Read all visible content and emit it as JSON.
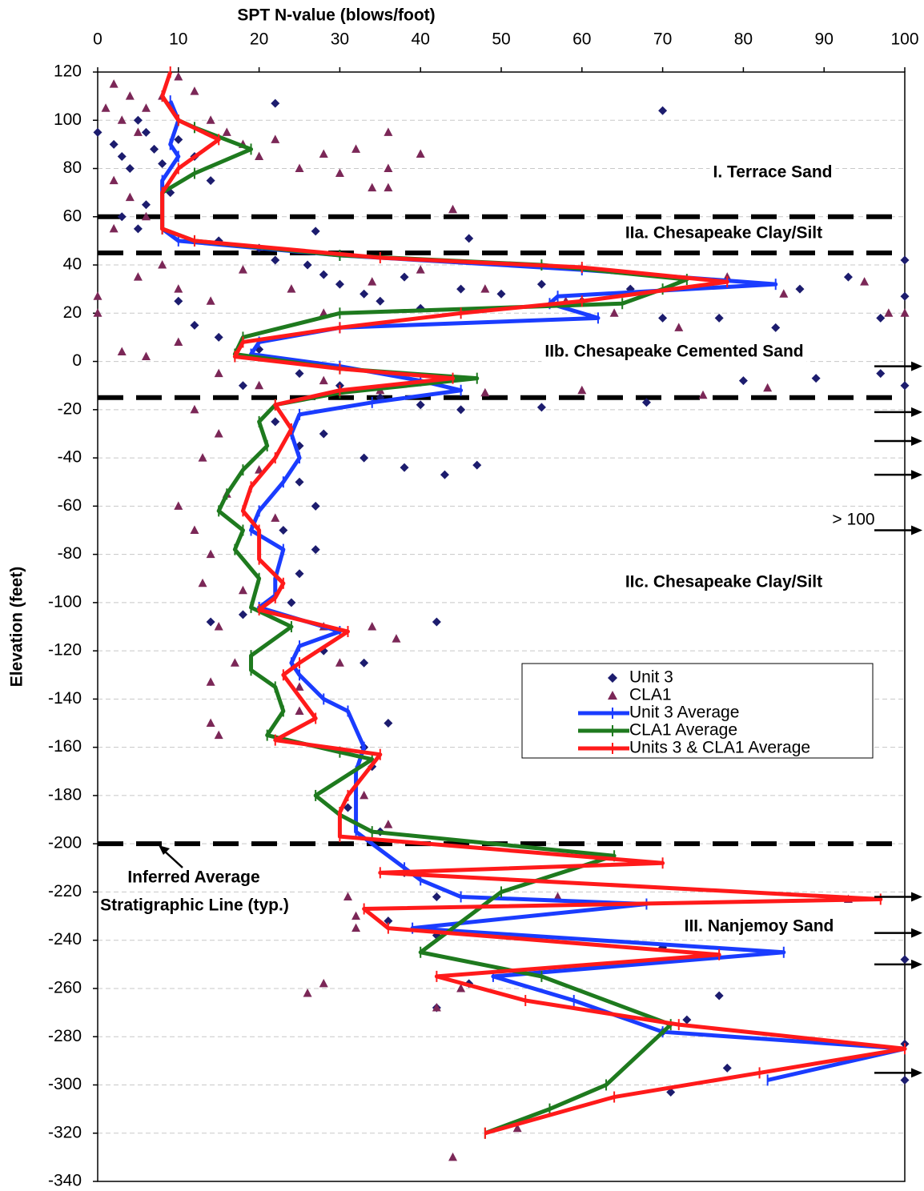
{
  "chart_data": {
    "type": "scatter",
    "x_label": "SPT N-value (blows/foot)",
    "y_label": "Elevation (feet)",
    "xlim": [
      0,
      100
    ],
    "xticks": [
      0,
      10,
      20,
      30,
      40,
      50,
      60,
      70,
      80,
      90,
      100
    ],
    "ylim": [
      -340,
      120
    ],
    "yticks": [
      120,
      100,
      80,
      60,
      40,
      20,
      0,
      -20,
      -40,
      -60,
      -80,
      -100,
      -120,
      -140,
      -160,
      -180,
      -200,
      -220,
      -240,
      -260,
      -280,
      -300,
      -320,
      -340
    ],
    "grid": true,
    "legend": "right",
    "boundaries": [
      60,
      45,
      -15,
      -200
    ],
    "offscale": {
      "label": "> 100",
      "elevations": [
        -2,
        -21,
        -33,
        -47,
        -70,
        -222,
        -237,
        -250,
        -295
      ]
    },
    "annotations": [
      "I. Terrace Sand",
      "IIa. Chesapeake Clay/Silt",
      "IIb. Chesapeake Cemented Sand",
      "IIc. Chesapeake Clay/Silt",
      "III. Nanjemoy Sand",
      "Inferred Average",
      "Stratigraphic Line (typ.)"
    ],
    "series": [
      {
        "name": "Unit 3",
        "kind": "scatter",
        "marker": "diamond",
        "color": "#1c1c6e",
        "x": [
          0,
          2,
          3,
          5,
          6,
          7,
          4,
          8,
          10,
          12,
          14,
          9,
          6,
          3,
          5,
          15,
          20,
          22,
          26,
          28,
          30,
          33,
          35,
          38,
          40,
          45,
          50,
          55,
          60,
          66,
          70,
          77,
          70,
          22,
          27,
          46,
          84,
          87,
          93,
          97,
          100,
          100,
          100,
          100,
          100,
          100,
          10,
          12,
          15,
          20,
          25,
          30,
          35,
          40,
          45,
          55,
          68,
          80,
          89,
          97,
          18,
          22,
          25,
          28,
          33,
          38,
          43,
          47,
          25,
          27,
          23,
          27,
          25,
          24,
          14,
          18,
          42,
          28,
          33,
          36,
          33,
          34,
          31,
          35,
          38,
          42,
          36,
          42,
          70,
          46,
          42,
          77,
          73,
          70,
          78,
          71
        ],
        "values": [
          95,
          90,
          85,
          100,
          95,
          88,
          80,
          82,
          92,
          85,
          75,
          70,
          65,
          60,
          55,
          50,
          47,
          42,
          40,
          36,
          32,
          28,
          25,
          35,
          22,
          30,
          28,
          32,
          25,
          30,
          18,
          18,
          104,
          107,
          54,
          51,
          14,
          30,
          35,
          18,
          42,
          27,
          -10,
          -248,
          -283,
          -298,
          25,
          15,
          10,
          5,
          -5,
          -10,
          -15,
          -18,
          -20,
          -19,
          -17,
          -8,
          -7,
          -5,
          -10,
          -25,
          -35,
          -30,
          -40,
          -44,
          -47,
          -43,
          -50,
          -60,
          -70,
          -78,
          -88,
          -100,
          -108,
          -105,
          -108,
          -120,
          -125,
          -150,
          -160,
          -168,
          -185,
          -195,
          -212,
          -222,
          -232,
          -238,
          -243,
          -258,
          -268,
          -263,
          -273,
          -278,
          -293,
          -303
        ]
      },
      {
        "name": "CLA1",
        "kind": "scatter",
        "marker": "triangle",
        "color": "#7b2757",
        "x": [
          2,
          4,
          6,
          3,
          5,
          8,
          10,
          12,
          1,
          14,
          16,
          18,
          20,
          22,
          25,
          28,
          30,
          32,
          34,
          36,
          40,
          36,
          36,
          2,
          4,
          6,
          2,
          0,
          0,
          5,
          8,
          10,
          14,
          18,
          24,
          28,
          34,
          40,
          48,
          58,
          64,
          72,
          78,
          85,
          95,
          98,
          100,
          44,
          3,
          6,
          10,
          15,
          20,
          28,
          35,
          48,
          60,
          75,
          83,
          12,
          15,
          13,
          10,
          12,
          14,
          13,
          16,
          20,
          22,
          18,
          15,
          17,
          14,
          14,
          15,
          28,
          34,
          37,
          30,
          25,
          25,
          33,
          36,
          31,
          32,
          28,
          42,
          45,
          52,
          44,
          57,
          93,
          26,
          32
        ],
        "values": [
          115,
          110,
          105,
          100,
          95,
          110,
          118,
          112,
          105,
          100,
          95,
          90,
          85,
          92,
          80,
          86,
          78,
          88,
          72,
          95,
          86,
          80,
          72,
          75,
          68,
          60,
          55,
          27,
          20,
          35,
          40,
          30,
          25,
          38,
          30,
          20,
          33,
          38,
          30,
          25,
          20,
          14,
          35,
          28,
          33,
          20,
          20,
          63,
          4,
          2,
          8,
          -5,
          -10,
          -8,
          -12,
          -13,
          -12,
          -14,
          -11,
          -20,
          -30,
          -40,
          -60,
          -70,
          -80,
          -92,
          -55,
          -45,
          -65,
          -95,
          -110,
          -125,
          -133,
          -150,
          -155,
          -110,
          -110,
          -115,
          -125,
          -135,
          -145,
          -180,
          -192,
          -222,
          -235,
          -258,
          -268,
          -260,
          -318,
          -330,
          -222,
          -223,
          -262,
          -230
        ]
      },
      {
        "name": "Unit 3 Average",
        "kind": "line",
        "color": "#1a3cff",
        "x": [
          9,
          10,
          9,
          10,
          8,
          8,
          8,
          10,
          30,
          60,
          84,
          57,
          56,
          62,
          30,
          20,
          19,
          30,
          40,
          45,
          34,
          25,
          24,
          25,
          23,
          20,
          19,
          23,
          22,
          22,
          20,
          30,
          25,
          24,
          25,
          28,
          31,
          33,
          32,
          32,
          32,
          38,
          40,
          45,
          68,
          39,
          85,
          49,
          59,
          70,
          100,
          83
        ],
        "values": [
          108,
          100,
          90,
          85,
          75,
          65,
          55,
          50,
          44,
          38,
          32,
          27,
          24,
          18,
          14,
          8,
          3,
          -2,
          -8,
          -12,
          -17,
          -22,
          -30,
          -40,
          -50,
          -62,
          -70,
          -78,
          -90,
          -97,
          -102,
          -112,
          -118,
          -125,
          -130,
          -140,
          -145,
          -160,
          -170,
          -180,
          -195,
          -210,
          -215,
          -222,
          -225,
          -235,
          -245,
          -255,
          -265,
          -278,
          -285,
          -298
        ]
      },
      {
        "name": "CLA1 Average",
        "kind": "line",
        "color": "#1e7a1e",
        "x": [
          8,
          10,
          12,
          19,
          12,
          8,
          8,
          12,
          30,
          55,
          73,
          70,
          65,
          30,
          18,
          17,
          30,
          47,
          30,
          22,
          20,
          21,
          18,
          16,
          15,
          18,
          17,
          20,
          19,
          24,
          19,
          19,
          22,
          23,
          21,
          30,
          34,
          27,
          30,
          34,
          64,
          50,
          40,
          55,
          71,
          63,
          56,
          48
        ],
        "values": [
          110,
          100,
          97,
          88,
          78,
          70,
          55,
          50,
          44,
          40,
          34,
          30,
          24,
          20,
          10,
          3,
          -3,
          -7,
          -13,
          -18,
          -25,
          -35,
          -45,
          -55,
          -62,
          -70,
          -78,
          -90,
          -102,
          -110,
          -122,
          -128,
          -135,
          -145,
          -155,
          -162,
          -165,
          -180,
          -188,
          -195,
          -205,
          -220,
          -245,
          -255,
          -275,
          -300,
          -310,
          -320
        ]
      },
      {
        "name": "Units 3 & CLA1 Average",
        "kind": "line",
        "color": "#ff1a1a",
        "x": [
          9,
          8,
          10,
          15,
          10,
          8,
          8,
          12,
          35,
          60,
          78,
          60,
          45,
          30,
          18,
          17,
          30,
          44,
          30,
          22,
          24,
          22,
          19,
          18,
          20,
          20,
          23,
          22,
          20,
          31,
          25,
          23,
          27,
          22,
          35,
          31,
          30,
          30,
          70,
          35,
          97,
          33,
          36,
          77,
          42,
          53,
          72,
          100,
          82,
          64,
          48
        ],
        "values": [
          120,
          110,
          100,
          92,
          80,
          70,
          55,
          50,
          43,
          39,
          33,
          25,
          20,
          14,
          8,
          2,
          -3,
          -7,
          -12,
          -18,
          -28,
          -40,
          -52,
          -62,
          -70,
          -82,
          -92,
          -98,
          -103,
          -112,
          -125,
          -130,
          -148,
          -157,
          -163,
          -180,
          -187,
          -197,
          -208,
          -212,
          -223,
          -227,
          -235,
          -246,
          -255,
          -265,
          -275,
          -285,
          -295,
          -305,
          -320
        ]
      }
    ]
  }
}
